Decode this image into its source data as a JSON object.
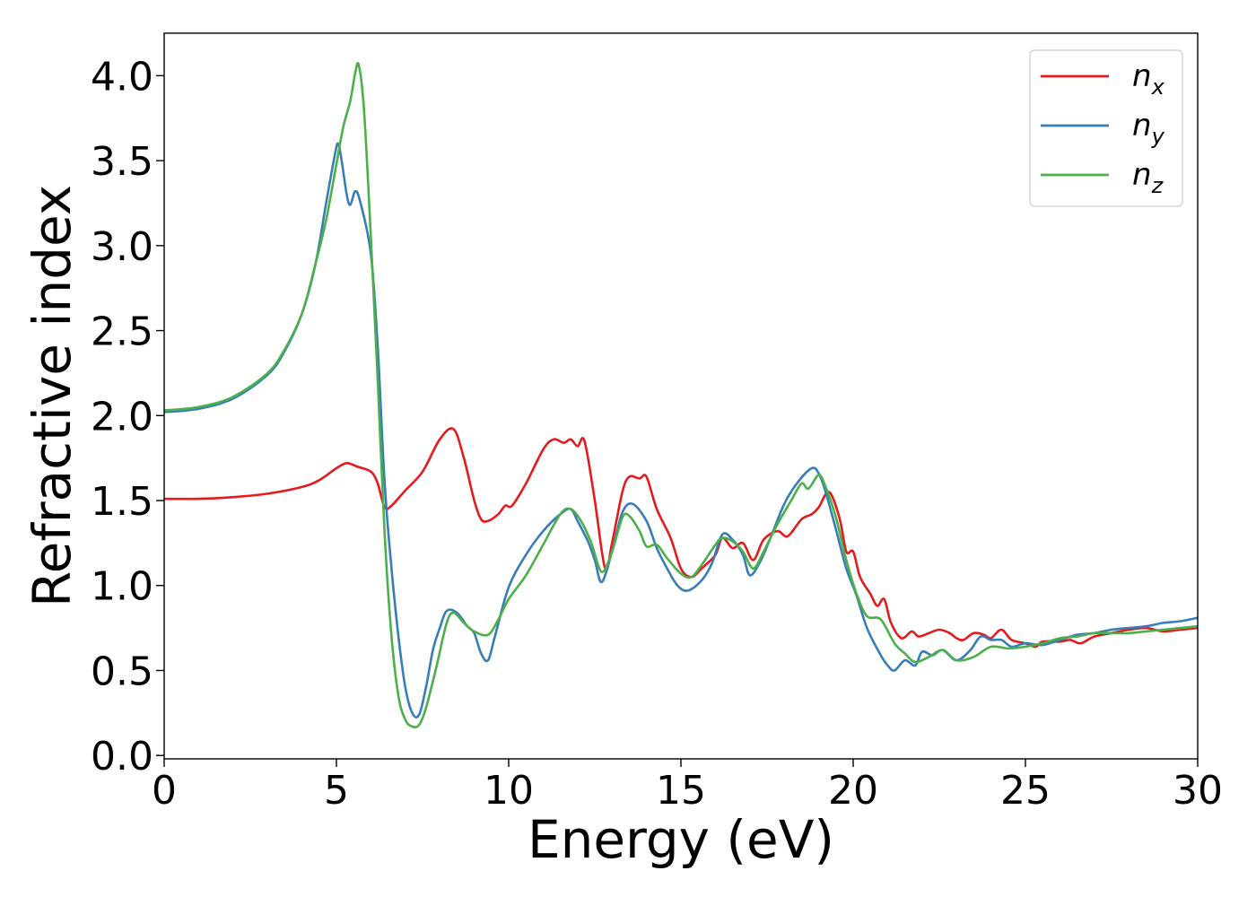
{
  "chart_data": {
    "type": "line",
    "title": "",
    "xlabel": "Energy (eV)",
    "ylabel": "Refractive index",
    "xlim": [
      0,
      30
    ],
    "ylim": [
      -0.02,
      4.25
    ],
    "xticks": [
      0,
      5,
      10,
      15,
      20,
      25,
      30
    ],
    "xtick_labels": [
      "0",
      "5",
      "10",
      "15",
      "20",
      "25",
      "30"
    ],
    "yticks": [
      0.0,
      0.5,
      1.0,
      1.5,
      2.0,
      2.5,
      3.0,
      3.5,
      4.0
    ],
    "ytick_labels": [
      "0.0",
      "0.5",
      "1.0",
      "1.5",
      "2.0",
      "2.5",
      "3.0",
      "3.5",
      "4.0"
    ],
    "grid": false,
    "legend_position": "top-right",
    "series": [
      {
        "name": "n_x",
        "name_base": "n",
        "name_sub": "x",
        "color": "#e41a1c",
        "points": [
          [
            0,
            1.51
          ],
          [
            1,
            1.51
          ],
          [
            2,
            1.52
          ],
          [
            3,
            1.54
          ],
          [
            4,
            1.58
          ],
          [
            4.5,
            1.62
          ],
          [
            5,
            1.69
          ],
          [
            5.3,
            1.72
          ],
          [
            5.6,
            1.7
          ],
          [
            6,
            1.67
          ],
          [
            6.2,
            1.6
          ],
          [
            6.4,
            1.46
          ],
          [
            6.6,
            1.47
          ],
          [
            7,
            1.56
          ],
          [
            7.5,
            1.67
          ],
          [
            8,
            1.86
          ],
          [
            8.4,
            1.92
          ],
          [
            8.7,
            1.75
          ],
          [
            9,
            1.5
          ],
          [
            9.2,
            1.39
          ],
          [
            9.4,
            1.38
          ],
          [
            9.7,
            1.42
          ],
          [
            9.9,
            1.47
          ],
          [
            10.1,
            1.47
          ],
          [
            10.5,
            1.6
          ],
          [
            11,
            1.8
          ],
          [
            11.3,
            1.86
          ],
          [
            11.6,
            1.84
          ],
          [
            11.8,
            1.86
          ],
          [
            12,
            1.82
          ],
          [
            12.2,
            1.85
          ],
          [
            12.5,
            1.5
          ],
          [
            12.8,
            1.1
          ],
          [
            13,
            1.25
          ],
          [
            13.3,
            1.55
          ],
          [
            13.5,
            1.64
          ],
          [
            13.8,
            1.63
          ],
          [
            14,
            1.64
          ],
          [
            14.3,
            1.45
          ],
          [
            14.7,
            1.28
          ],
          [
            15,
            1.1
          ],
          [
            15.3,
            1.05
          ],
          [
            15.6,
            1.1
          ],
          [
            16,
            1.18
          ],
          [
            16.2,
            1.28
          ],
          [
            16.5,
            1.22
          ],
          [
            16.8,
            1.25
          ],
          [
            17.1,
            1.15
          ],
          [
            17.4,
            1.27
          ],
          [
            17.8,
            1.32
          ],
          [
            18.1,
            1.29
          ],
          [
            18.5,
            1.39
          ],
          [
            18.8,
            1.42
          ],
          [
            19,
            1.46
          ],
          [
            19.3,
            1.55
          ],
          [
            19.6,
            1.4
          ],
          [
            19.8,
            1.2
          ],
          [
            20,
            1.2
          ],
          [
            20.2,
            1.05
          ],
          [
            20.5,
            0.95
          ],
          [
            20.7,
            0.88
          ],
          [
            20.9,
            0.92
          ],
          [
            21.1,
            0.78
          ],
          [
            21.4,
            0.69
          ],
          [
            21.7,
            0.73
          ],
          [
            21.9,
            0.7
          ],
          [
            22.2,
            0.72
          ],
          [
            22.5,
            0.74
          ],
          [
            22.8,
            0.72
          ],
          [
            23,
            0.69
          ],
          [
            23.2,
            0.68
          ],
          [
            23.5,
            0.72
          ],
          [
            23.8,
            0.71
          ],
          [
            24,
            0.69
          ],
          [
            24.3,
            0.74
          ],
          [
            24.6,
            0.68
          ],
          [
            25,
            0.66
          ],
          [
            25.3,
            0.64
          ],
          [
            25.5,
            0.67
          ],
          [
            26,
            0.67
          ],
          [
            26.3,
            0.68
          ],
          [
            26.6,
            0.66
          ],
          [
            27,
            0.7
          ],
          [
            27.5,
            0.72
          ],
          [
            28,
            0.74
          ],
          [
            28.5,
            0.75
          ],
          [
            29,
            0.73
          ],
          [
            29.5,
            0.74
          ],
          [
            30,
            0.75
          ]
        ]
      },
      {
        "name": "n_y",
        "name_base": "n",
        "name_sub": "y",
        "color": "#377eb8",
        "points": [
          [
            0,
            2.02
          ],
          [
            1,
            2.04
          ],
          [
            2,
            2.1
          ],
          [
            3,
            2.24
          ],
          [
            3.5,
            2.38
          ],
          [
            4,
            2.6
          ],
          [
            4.4,
            2.9
          ],
          [
            4.7,
            3.25
          ],
          [
            4.95,
            3.53
          ],
          [
            5.05,
            3.6
          ],
          [
            5.15,
            3.5
          ],
          [
            5.3,
            3.3
          ],
          [
            5.4,
            3.24
          ],
          [
            5.55,
            3.32
          ],
          [
            5.7,
            3.25
          ],
          [
            6,
            2.95
          ],
          [
            6.2,
            2.4
          ],
          [
            6.4,
            1.6
          ],
          [
            6.6,
            1.1
          ],
          [
            6.8,
            0.7
          ],
          [
            7,
            0.4
          ],
          [
            7.2,
            0.25
          ],
          [
            7.4,
            0.24
          ],
          [
            7.6,
            0.4
          ],
          [
            7.8,
            0.62
          ],
          [
            8,
            0.75
          ],
          [
            8.2,
            0.85
          ],
          [
            8.5,
            0.84
          ],
          [
            8.8,
            0.76
          ],
          [
            9,
            0.72
          ],
          [
            9.2,
            0.6
          ],
          [
            9.4,
            0.56
          ],
          [
            9.6,
            0.7
          ],
          [
            10,
            0.99
          ],
          [
            10.5,
            1.18
          ],
          [
            11,
            1.32
          ],
          [
            11.5,
            1.42
          ],
          [
            11.8,
            1.45
          ],
          [
            12,
            1.38
          ],
          [
            12.3,
            1.26
          ],
          [
            12.5,
            1.15
          ],
          [
            12.7,
            1.02
          ],
          [
            13,
            1.2
          ],
          [
            13.3,
            1.43
          ],
          [
            13.6,
            1.48
          ],
          [
            14,
            1.38
          ],
          [
            14.3,
            1.22
          ],
          [
            14.6,
            1.1
          ],
          [
            14.9,
            1.0
          ],
          [
            15.2,
            0.97
          ],
          [
            15.6,
            1.03
          ],
          [
            15.9,
            1.13
          ],
          [
            16.2,
            1.3
          ],
          [
            16.5,
            1.27
          ],
          [
            16.8,
            1.18
          ],
          [
            17,
            1.06
          ],
          [
            17.3,
            1.14
          ],
          [
            17.6,
            1.28
          ],
          [
            18,
            1.48
          ],
          [
            18.4,
            1.61
          ],
          [
            18.8,
            1.69
          ],
          [
            19,
            1.66
          ],
          [
            19.2,
            1.55
          ],
          [
            19.5,
            1.33
          ],
          [
            19.8,
            1.1
          ],
          [
            20.1,
            0.94
          ],
          [
            20.4,
            0.75
          ],
          [
            20.8,
            0.59
          ],
          [
            21,
            0.53
          ],
          [
            21.2,
            0.5
          ],
          [
            21.5,
            0.56
          ],
          [
            21.8,
            0.53
          ],
          [
            22,
            0.61
          ],
          [
            22.3,
            0.59
          ],
          [
            22.6,
            0.62
          ],
          [
            23,
            0.56
          ],
          [
            23.4,
            0.62
          ],
          [
            23.7,
            0.7
          ],
          [
            24,
            0.68
          ],
          [
            24.3,
            0.68
          ],
          [
            24.6,
            0.64
          ],
          [
            25,
            0.66
          ],
          [
            25.5,
            0.65
          ],
          [
            26,
            0.68
          ],
          [
            26.5,
            0.71
          ],
          [
            27,
            0.72
          ],
          [
            27.5,
            0.74
          ],
          [
            28,
            0.75
          ],
          [
            28.5,
            0.76
          ],
          [
            29,
            0.78
          ],
          [
            29.5,
            0.79
          ],
          [
            30,
            0.81
          ]
        ]
      },
      {
        "name": "n_z",
        "name_base": "n",
        "name_sub": "z",
        "color": "#4daf4a",
        "points": [
          [
            0,
            2.03
          ],
          [
            1,
            2.05
          ],
          [
            2,
            2.11
          ],
          [
            3,
            2.25
          ],
          [
            3.5,
            2.39
          ],
          [
            4,
            2.6
          ],
          [
            4.4,
            2.9
          ],
          [
            4.7,
            3.15
          ],
          [
            5,
            3.48
          ],
          [
            5.2,
            3.7
          ],
          [
            5.4,
            3.85
          ],
          [
            5.55,
            4.02
          ],
          [
            5.65,
            4.06
          ],
          [
            5.8,
            3.8
          ],
          [
            6,
            3.05
          ],
          [
            6.2,
            2.2
          ],
          [
            6.4,
            1.3
          ],
          [
            6.6,
            0.7
          ],
          [
            6.8,
            0.35
          ],
          [
            7,
            0.21
          ],
          [
            7.2,
            0.17
          ],
          [
            7.4,
            0.18
          ],
          [
            7.6,
            0.28
          ],
          [
            7.9,
            0.52
          ],
          [
            8.2,
            0.78
          ],
          [
            8.4,
            0.84
          ],
          [
            8.7,
            0.78
          ],
          [
            9,
            0.73
          ],
          [
            9.4,
            0.71
          ],
          [
            9.7,
            0.8
          ],
          [
            10,
            0.92
          ],
          [
            10.5,
            1.06
          ],
          [
            11,
            1.24
          ],
          [
            11.5,
            1.42
          ],
          [
            11.8,
            1.45
          ],
          [
            12.1,
            1.38
          ],
          [
            12.4,
            1.25
          ],
          [
            12.7,
            1.08
          ],
          [
            13,
            1.2
          ],
          [
            13.3,
            1.4
          ],
          [
            13.5,
            1.41
          ],
          [
            13.8,
            1.32
          ],
          [
            14,
            1.23
          ],
          [
            14.3,
            1.24
          ],
          [
            14.6,
            1.16
          ],
          [
            15,
            1.07
          ],
          [
            15.3,
            1.05
          ],
          [
            15.6,
            1.12
          ],
          [
            16,
            1.24
          ],
          [
            16.2,
            1.28
          ],
          [
            16.5,
            1.26
          ],
          [
            16.8,
            1.2
          ],
          [
            17.1,
            1.1
          ],
          [
            17.4,
            1.2
          ],
          [
            17.8,
            1.36
          ],
          [
            18.2,
            1.5
          ],
          [
            18.5,
            1.6
          ],
          [
            18.7,
            1.57
          ],
          [
            19,
            1.65
          ],
          [
            19.2,
            1.58
          ],
          [
            19.5,
            1.4
          ],
          [
            19.8,
            1.15
          ],
          [
            20.1,
            0.95
          ],
          [
            20.4,
            0.82
          ],
          [
            20.8,
            0.8
          ],
          [
            21.2,
            0.66
          ],
          [
            21.5,
            0.6
          ],
          [
            21.8,
            0.55
          ],
          [
            22.2,
            0.58
          ],
          [
            22.6,
            0.62
          ],
          [
            23,
            0.56
          ],
          [
            23.5,
            0.58
          ],
          [
            24,
            0.64
          ],
          [
            24.5,
            0.63
          ],
          [
            25,
            0.64
          ],
          [
            25.5,
            0.66
          ],
          [
            26,
            0.69
          ],
          [
            26.5,
            0.7
          ],
          [
            27,
            0.72
          ],
          [
            27.5,
            0.72
          ],
          [
            28,
            0.72
          ],
          [
            28.5,
            0.73
          ],
          [
            29,
            0.74
          ],
          [
            29.5,
            0.75
          ],
          [
            30,
            0.76
          ]
        ]
      }
    ]
  }
}
